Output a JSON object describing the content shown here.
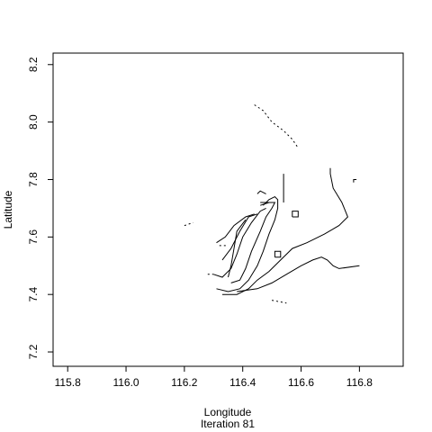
{
  "chart_data": {
    "type": "contour",
    "title": "",
    "xlabel": "Longitude",
    "ylabel": "Latitude",
    "caption": "Iteration 81",
    "xlim": [
      115.75,
      116.95
    ],
    "ylim": [
      7.15,
      8.24
    ],
    "x_ticks": [
      115.8,
      116.0,
      116.2,
      116.4,
      116.6,
      116.8
    ],
    "x_tick_labels": [
      "115.8",
      "116.0",
      "116.2",
      "116.4",
      "116.6",
      "116.8"
    ],
    "y_ticks": [
      7.2,
      7.4,
      7.6,
      7.8,
      8.0,
      8.2
    ],
    "y_tick_labels": [
      "7.2",
      "7.4",
      "7.6",
      "7.8",
      "8.0",
      "8.2"
    ],
    "grid": false,
    "legend": "none",
    "line_color": "#000000",
    "contours": [
      {
        "dashed": false,
        "points": [
          [
            116.31,
            7.42
          ],
          [
            116.35,
            7.41
          ],
          [
            116.39,
            7.42
          ],
          [
            116.42,
            7.45
          ],
          [
            116.45,
            7.5
          ],
          [
            116.47,
            7.55
          ],
          [
            116.49,
            7.61
          ],
          [
            116.51,
            7.66
          ],
          [
            116.52,
            7.7
          ],
          [
            116.52,
            7.73
          ],
          [
            116.51,
            7.74
          ],
          [
            116.49,
            7.73
          ],
          [
            116.47,
            7.71
          ]
        ]
      },
      {
        "dashed": false,
        "points": [
          [
            116.36,
            7.44
          ],
          [
            116.39,
            7.45
          ],
          [
            116.41,
            7.49
          ],
          [
            116.43,
            7.55
          ],
          [
            116.46,
            7.62
          ],
          [
            116.48,
            7.67
          ],
          [
            116.5,
            7.7
          ],
          [
            116.51,
            7.72
          ],
          [
            116.49,
            7.72
          ],
          [
            116.46,
            7.71
          ]
        ]
      },
      {
        "dashed": false,
        "points": [
          [
            116.3,
            7.47
          ],
          [
            116.33,
            7.46
          ],
          [
            116.36,
            7.49
          ],
          [
            116.38,
            7.54
          ],
          [
            116.4,
            7.6
          ],
          [
            116.43,
            7.65
          ],
          [
            116.46,
            7.69
          ],
          [
            116.48,
            7.7
          ]
        ]
      },
      {
        "dashed": false,
        "points": [
          [
            116.33,
            7.52
          ],
          [
            116.36,
            7.56
          ],
          [
            116.39,
            7.62
          ],
          [
            116.42,
            7.67
          ],
          [
            116.45,
            7.68
          ]
        ]
      },
      {
        "dashed": false,
        "points": [
          [
            116.31,
            7.58
          ],
          [
            116.34,
            7.6
          ],
          [
            116.37,
            7.64
          ],
          [
            116.41,
            7.67
          ],
          [
            116.44,
            7.68
          ]
        ]
      },
      {
        "dashed": false,
        "points": [
          [
            116.35,
            7.46
          ],
          [
            116.36,
            7.5
          ],
          [
            116.37,
            7.56
          ],
          [
            116.38,
            7.62
          ],
          [
            116.41,
            7.66
          ]
        ]
      },
      {
        "dashed": false,
        "points": [
          [
            116.33,
            7.4
          ],
          [
            116.38,
            7.4
          ],
          [
            116.42,
            7.42
          ],
          [
            116.45,
            7.45
          ],
          [
            116.49,
            7.48
          ],
          [
            116.53,
            7.52
          ],
          [
            116.57,
            7.56
          ],
          [
            116.62,
            7.58
          ],
          [
            116.68,
            7.61
          ],
          [
            116.73,
            7.64
          ],
          [
            116.76,
            7.67
          ],
          [
            116.74,
            7.72
          ],
          [
            116.71,
            7.77
          ],
          [
            116.7,
            7.82
          ],
          [
            116.7,
            7.84
          ]
        ]
      },
      {
        "dashed": false,
        "points": [
          [
            116.38,
            7.41
          ],
          [
            116.45,
            7.42
          ],
          [
            116.5,
            7.44
          ],
          [
            116.55,
            7.47
          ],
          [
            116.6,
            7.5
          ],
          [
            116.64,
            7.52
          ],
          [
            116.67,
            7.53
          ],
          [
            116.69,
            7.52
          ],
          [
            116.71,
            7.5
          ],
          [
            116.73,
            7.49
          ],
          [
            116.8,
            7.5
          ]
        ]
      },
      {
        "dashed": false,
        "points": [
          [
            116.51,
            7.53
          ],
          [
            116.53,
            7.53
          ],
          [
            116.53,
            7.55
          ],
          [
            116.51,
            7.55
          ],
          [
            116.51,
            7.53
          ]
        ]
      },
      {
        "dashed": false,
        "points": [
          [
            116.57,
            7.67
          ],
          [
            116.59,
            7.67
          ],
          [
            116.59,
            7.69
          ],
          [
            116.57,
            7.69
          ],
          [
            116.57,
            7.67
          ]
        ]
      },
      {
        "dashed": false,
        "points": [
          [
            116.54,
            7.72
          ],
          [
            116.54,
            7.82
          ]
        ]
      },
      {
        "dashed": false,
        "points": [
          [
            116.78,
            7.79
          ],
          [
            116.78,
            7.8
          ],
          [
            116.79,
            7.8
          ]
        ]
      },
      {
        "dashed": false,
        "points": [
          [
            116.46,
            7.72
          ],
          [
            116.49,
            7.72
          ]
        ]
      },
      {
        "dashed": false,
        "points": [
          [
            116.45,
            7.75
          ],
          [
            116.46,
            7.76
          ],
          [
            116.48,
            7.75
          ]
        ]
      },
      {
        "dashed": true,
        "points": [
          [
            116.44,
            8.06
          ],
          [
            116.47,
            8.04
          ],
          [
            116.5,
            8.0
          ],
          [
            116.54,
            7.97
          ],
          [
            116.57,
            7.94
          ],
          [
            116.59,
            7.91
          ]
        ]
      },
      {
        "dashed": true,
        "points": [
          [
            116.2,
            7.64
          ],
          [
            116.23,
            7.65
          ]
        ]
      },
      {
        "dashed": true,
        "points": [
          [
            116.28,
            7.47
          ],
          [
            116.3,
            7.47
          ]
        ]
      },
      {
        "dashed": true,
        "points": [
          [
            116.32,
            7.57
          ],
          [
            116.35,
            7.57
          ]
        ]
      },
      {
        "dashed": true,
        "points": [
          [
            116.5,
            7.38
          ],
          [
            116.55,
            7.37
          ]
        ]
      }
    ]
  }
}
